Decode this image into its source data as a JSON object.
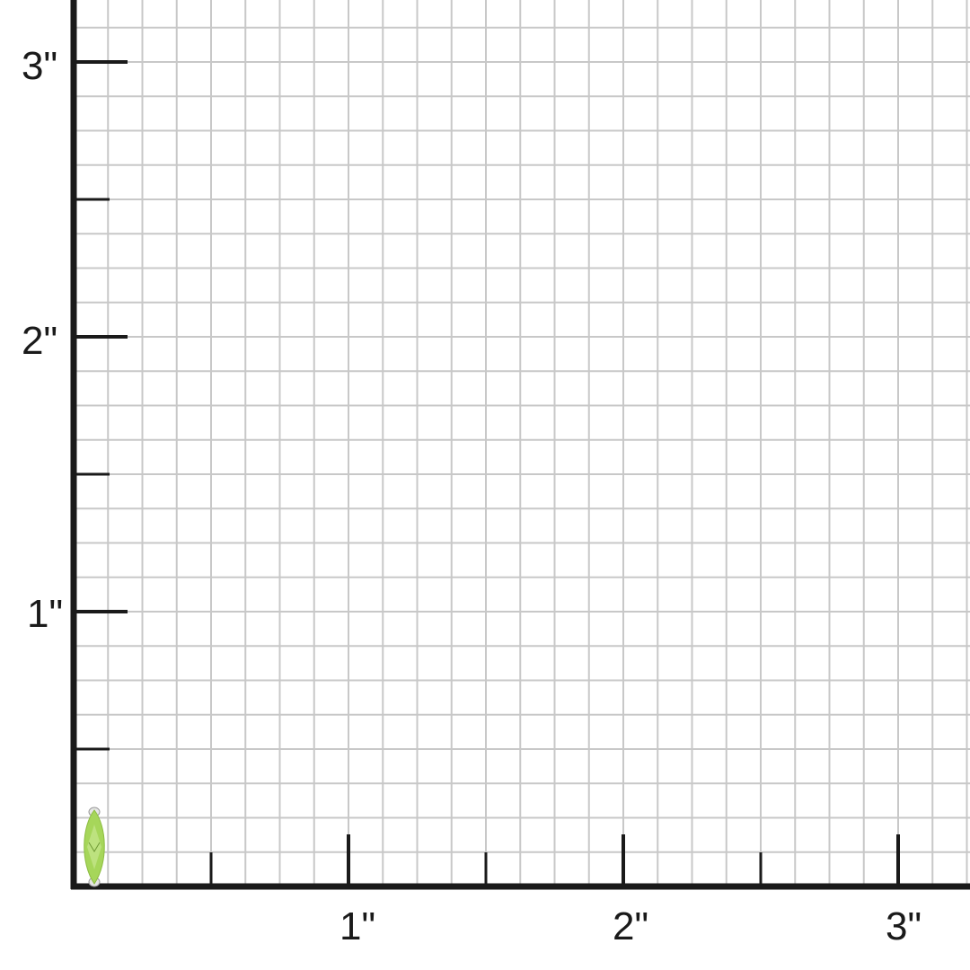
{
  "scale": {
    "unit_symbol": "\"",
    "x_labels": [
      "1\"",
      "2\"",
      "3\""
    ],
    "y_labels": [
      "1\"",
      "2\"",
      "3\""
    ],
    "grid_divisions_per_inch": 8,
    "colors": {
      "axis": "#1a1a1a",
      "grid": "#c8c8c8",
      "gem": "#a6d65a"
    }
  },
  "product": {
    "icon": "marquise-gemstone-icon"
  }
}
